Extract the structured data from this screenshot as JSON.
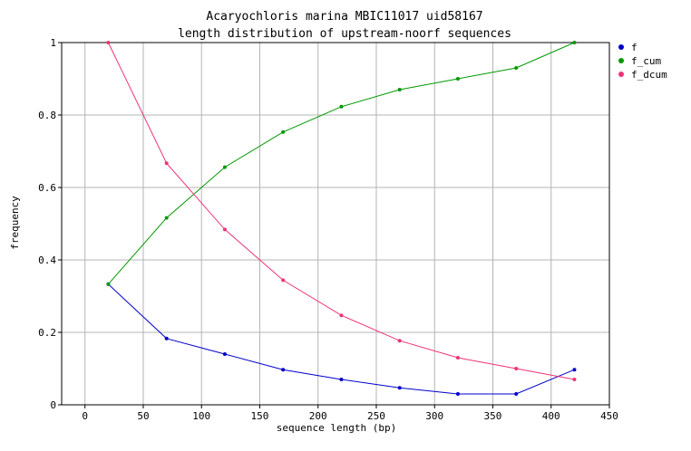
{
  "chart_data": {
    "type": "line",
    "title_lines": [
      "Acaryochloris marina MBIC11017 uid58167",
      "length distribution of upstream-noorf sequences"
    ],
    "xlabel": "sequence length (bp)",
    "ylabel": "frequency",
    "xlim": [
      -20,
      450
    ],
    "ylim": [
      0,
      1
    ],
    "x_ticks": [
      0,
      50,
      100,
      150,
      200,
      250,
      300,
      350,
      400,
      450
    ],
    "y_ticks": [
      0,
      0.2,
      0.4,
      0.6,
      0.8,
      1
    ],
    "x_tick_labels": [
      "0",
      "50",
      "100",
      "150",
      "200",
      "250",
      "300",
      "350",
      "400",
      "450"
    ],
    "y_tick_labels": [
      "0",
      "0.2",
      "0.4",
      "0.6",
      "0.8",
      "1"
    ],
    "grid": true,
    "legend_position": "right",
    "x": [
      20,
      70,
      120,
      170,
      220,
      270,
      320,
      370,
      420
    ],
    "series": [
      {
        "name": "f",
        "color": "#0000cc",
        "values": [
          0.333,
          0.183,
          0.14,
          0.097,
          0.07,
          0.047,
          0.03,
          0.03,
          0.097
        ]
      },
      {
        "name": "f_cum",
        "color": "#009900",
        "values": [
          0.333,
          0.516,
          0.656,
          0.753,
          0.823,
          0.87,
          0.9,
          0.93,
          1.0
        ]
      },
      {
        "name": "f_dcum",
        "color": "#ee3377",
        "values": [
          1.0,
          0.667,
          0.484,
          0.344,
          0.247,
          0.177,
          0.13,
          0.1,
          0.07
        ]
      }
    ]
  }
}
